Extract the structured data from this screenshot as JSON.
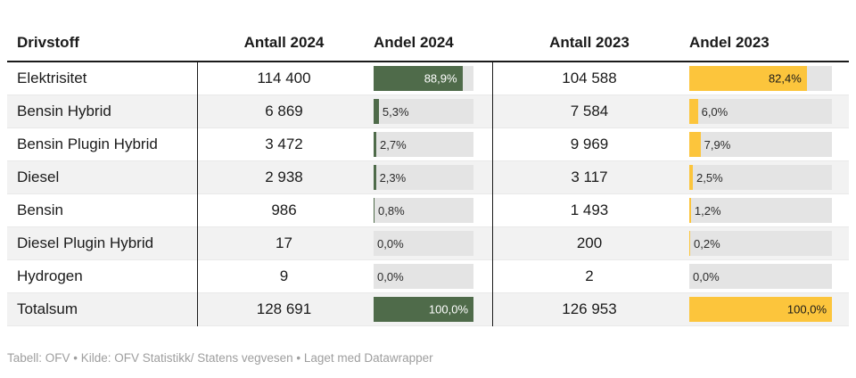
{
  "chart_data": {
    "type": "table",
    "title": "",
    "columns": [
      "Drivstoff",
      "Antall 2024",
      "Andel 2024",
      "Antall 2023",
      "Andel 2023"
    ],
    "rows": [
      {
        "drivstoff": "Elektrisitet",
        "antall_2024": "114 400",
        "andel_2024_label": "88,9%",
        "andel_2024_pct": 88.9,
        "antall_2023": "104 588",
        "andel_2023_label": "82,4%",
        "andel_2023_pct": 82.4
      },
      {
        "drivstoff": "Bensin Hybrid",
        "antall_2024": "6 869",
        "andel_2024_label": "5,3%",
        "andel_2024_pct": 5.3,
        "antall_2023": "7 584",
        "andel_2023_label": "6,0%",
        "andel_2023_pct": 6.0
      },
      {
        "drivstoff": "Bensin Plugin Hybrid",
        "antall_2024": "3 472",
        "andel_2024_label": "2,7%",
        "andel_2024_pct": 2.7,
        "antall_2023": "9 969",
        "andel_2023_label": "7,9%",
        "andel_2023_pct": 7.9
      },
      {
        "drivstoff": "Diesel",
        "antall_2024": "2 938",
        "andel_2024_label": "2,3%",
        "andel_2024_pct": 2.3,
        "antall_2023": "3 117",
        "andel_2023_label": "2,5%",
        "andel_2023_pct": 2.5
      },
      {
        "drivstoff": "Bensin",
        "antall_2024": "986",
        "andel_2024_label": "0,8%",
        "andel_2024_pct": 0.8,
        "antall_2023": "1 493",
        "andel_2023_label": "1,2%",
        "andel_2023_pct": 1.2
      },
      {
        "drivstoff": "Diesel Plugin Hybrid",
        "antall_2024": "17",
        "andel_2024_label": "0,0%",
        "andel_2024_pct": 0.0,
        "antall_2023": "200",
        "andel_2023_label": "0,2%",
        "andel_2023_pct": 0.2
      },
      {
        "drivstoff": "Hydrogen",
        "antall_2024": "9",
        "andel_2024_label": "0,0%",
        "andel_2024_pct": 0.0,
        "antall_2023": "2",
        "andel_2023_label": "0,0%",
        "andel_2023_pct": 0.0
      },
      {
        "drivstoff": "Totalsum",
        "antall_2024": "128 691",
        "andel_2024_label": "100,0%",
        "andel_2024_pct": 100.0,
        "antall_2023": "126 953",
        "andel_2023_label": "100,0%",
        "andel_2023_pct": 100.0
      }
    ],
    "legend_position": "none",
    "grid": "off"
  },
  "colors": {
    "bar_2024": "#4f6b4a",
    "bar_2023": "#fcc53c",
    "bar_2024_label_inside": "#ffffff",
    "bar_2023_label_inside": "#1a1a1a",
    "track": "#e4e4e4",
    "stripe": "#f2f2f2"
  },
  "footer": {
    "text": "Tabell: OFV • Kilde: OFV Statistikk/ Statens vegvesen • Laget med Datawrapper"
  }
}
